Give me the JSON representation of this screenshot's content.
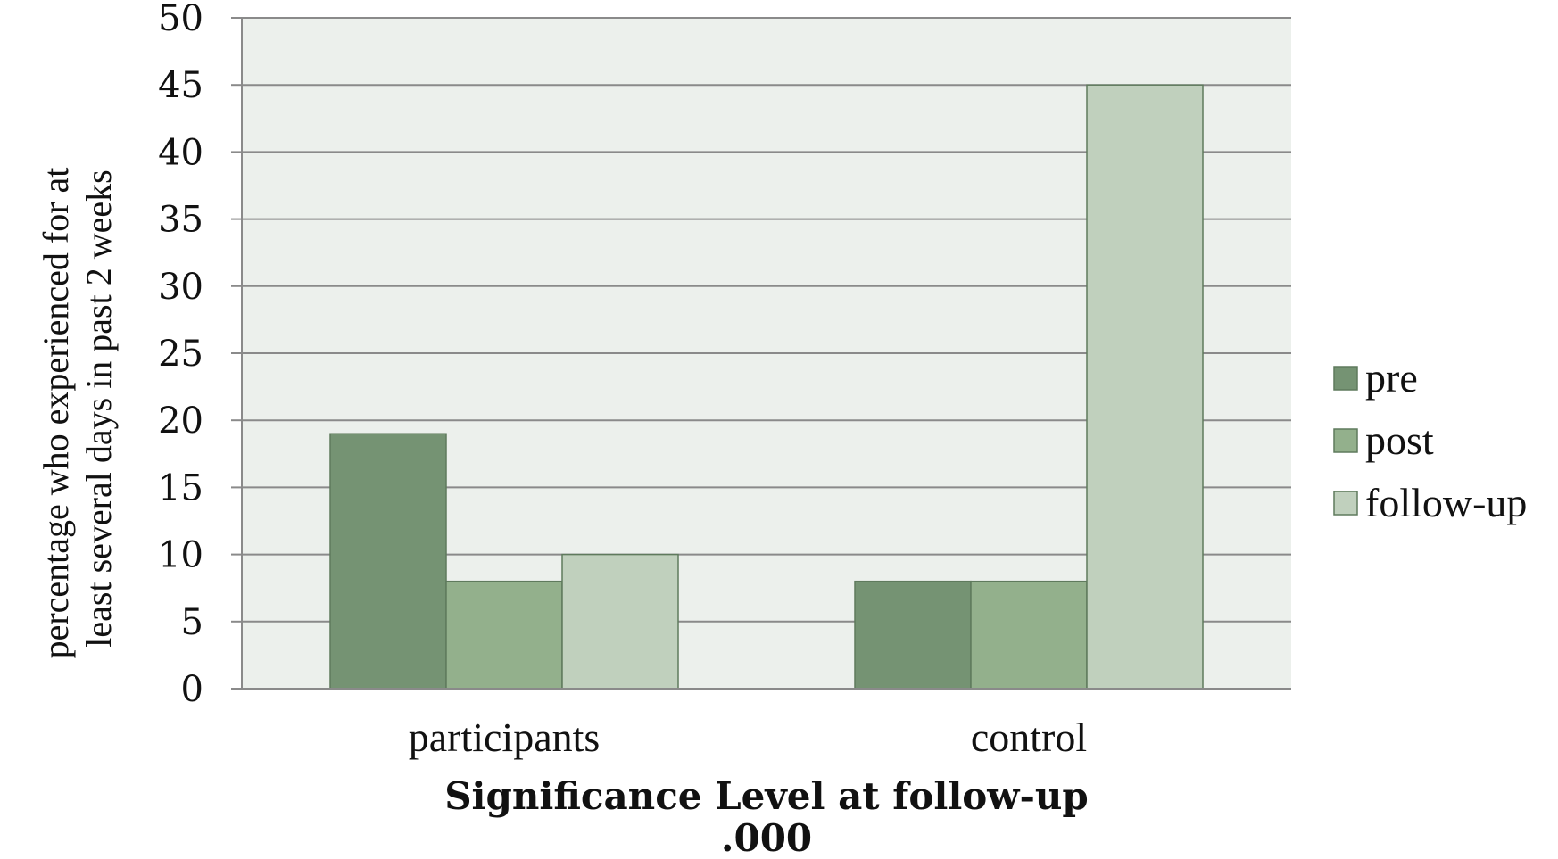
{
  "chart_data": {
    "type": "bar",
    "categories": [
      "participants",
      "control"
    ],
    "series": [
      {
        "name": "pre",
        "values": [
          19,
          8
        ],
        "color": "#759373"
      },
      {
        "name": "post",
        "values": [
          8,
          8
        ],
        "color": "#93b08c"
      },
      {
        "name": "follow-up",
        "values": [
          10,
          45
        ],
        "color": "#c0d0bd"
      }
    ],
    "ylabel_lines": [
      "percentage who experienced for at",
      "least several days in past 2 weeks"
    ],
    "xlabel_lines": [
      "Significance Level at follow-up",
      ".000"
    ],
    "ylim": [
      0,
      50
    ],
    "yticks": [
      0,
      5,
      10,
      15,
      20,
      25,
      30,
      35,
      40,
      45,
      50
    ],
    "grid": true,
    "legend_position": "right",
    "plot_background": "#ecf0ec",
    "gridline_color": "#8a8a8a",
    "bar_border_color": "#5f7a5d"
  }
}
